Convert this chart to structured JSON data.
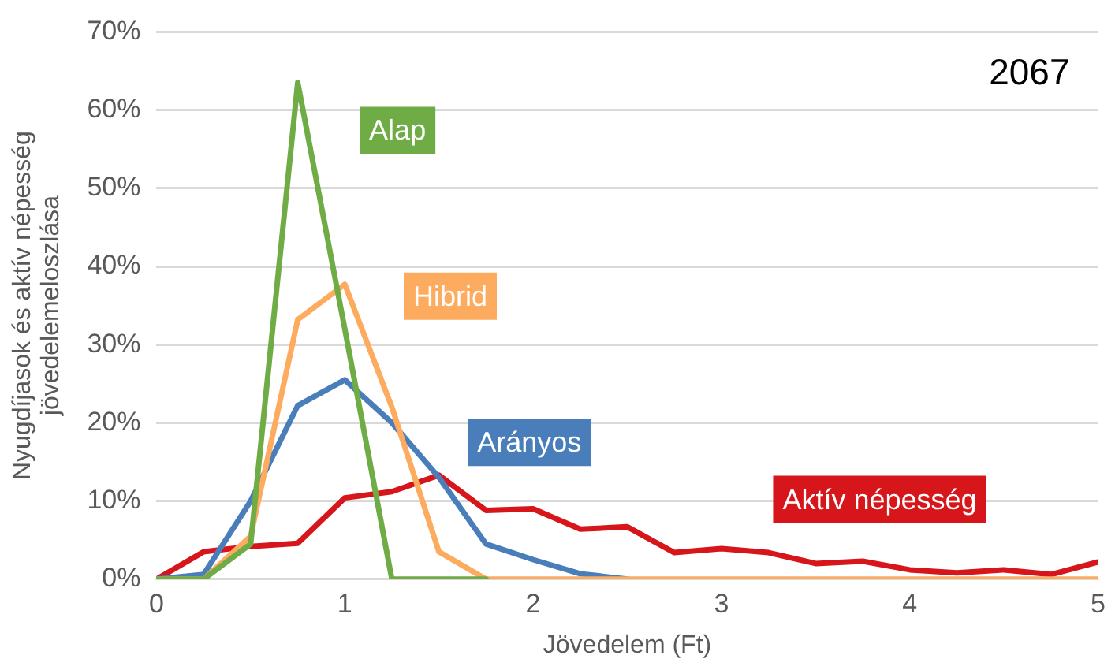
{
  "chart_data": {
    "type": "line",
    "title": "2067",
    "xlabel": "Jövedelem (Ft)",
    "ylabel": "Nyugdíjasok és aktív népesség jövedelemeloszlása",
    "x": [
      0,
      0.25,
      0.5,
      0.75,
      1,
      1.25,
      1.5,
      1.75,
      2,
      2.25,
      2.5,
      2.75,
      3,
      3.25,
      3.5,
      3.75,
      4,
      4.25,
      4.5,
      4.75,
      5
    ],
    "series": [
      {
        "name": "Aktív népesség",
        "color": "#d7161b",
        "values": [
          0,
          3.5,
          4.2,
          4.6,
          10.4,
          11.2,
          13.3,
          8.8,
          9,
          6.4,
          6.7,
          3.4,
          3.9,
          3.4,
          2,
          2.3,
          1.2,
          0.8,
          1.2,
          0.6,
          2.2
        ]
      },
      {
        "name": "Arányos",
        "color": "#4a7ebb",
        "values": [
          0,
          0.6,
          10,
          22.2,
          25.5,
          20,
          13,
          4.5,
          2.5,
          0.7,
          0,
          null,
          null,
          null,
          null,
          null,
          null,
          null,
          null,
          null,
          null
        ]
      },
      {
        "name": "Hibrid",
        "color": "#fdab5f",
        "values": [
          0,
          0,
          5.5,
          33.2,
          37.7,
          22,
          3.5,
          0,
          0,
          0,
          0,
          0,
          0,
          0,
          0,
          0,
          0,
          0,
          0,
          0,
          0
        ]
      },
      {
        "name": "Alap",
        "color": "#6fac46",
        "values": [
          0,
          0,
          4.5,
          63.5,
          32,
          0,
          0,
          0,
          null,
          null,
          null,
          null,
          null,
          null,
          null,
          null,
          null,
          null,
          null,
          null,
          null
        ]
      }
    ],
    "xlim": [
      0,
      5
    ],
    "xticks": [
      0,
      1,
      2,
      3,
      4,
      5
    ],
    "ylim": [
      0,
      70
    ],
    "yticks": [
      {
        "value": 0,
        "label": "0%"
      },
      {
        "value": 10,
        "label": "10%"
      },
      {
        "value": 20,
        "label": "20%"
      },
      {
        "value": 30,
        "label": "30%"
      },
      {
        "value": 40,
        "label": "40%"
      },
      {
        "value": 50,
        "label": "50%"
      },
      {
        "value": 60,
        "label": "60%"
      },
      {
        "value": 70,
        "label": "70%"
      }
    ],
    "grid": "y",
    "legend": false,
    "marker": "none",
    "line_style": "solid"
  }
}
